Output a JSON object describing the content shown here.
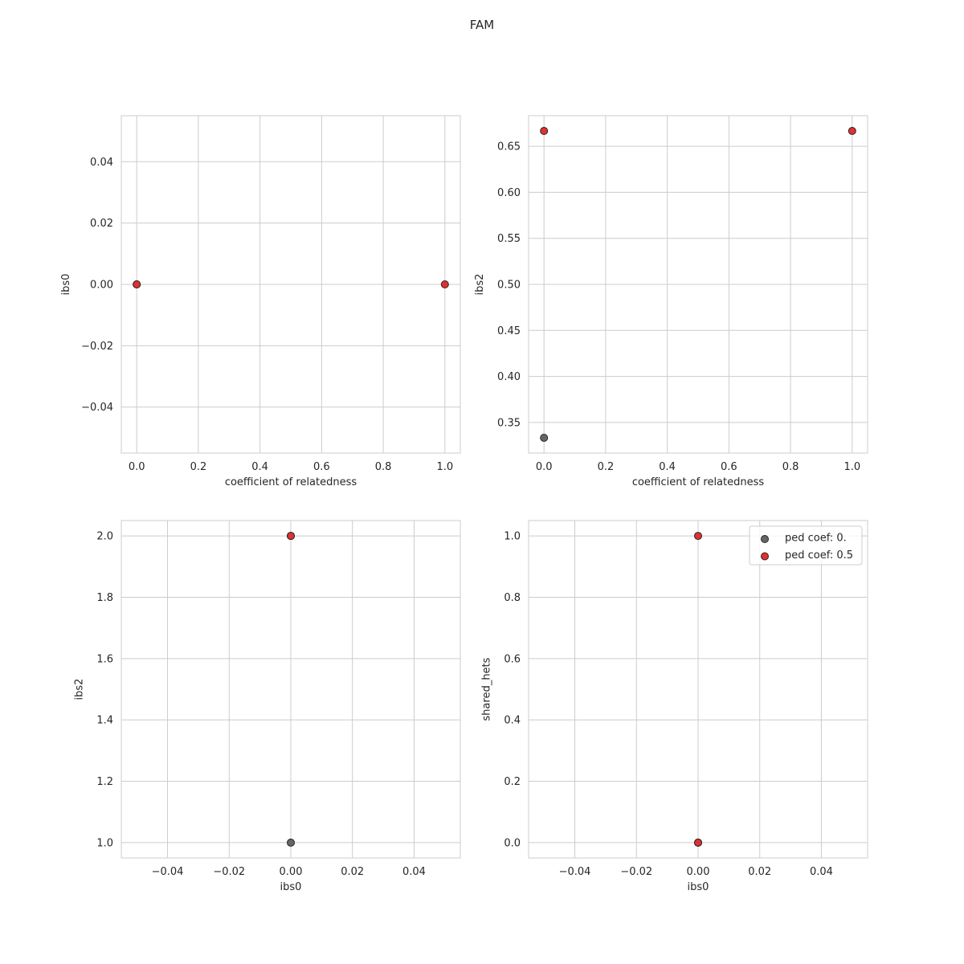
{
  "figure": {
    "suptitle": "FAM"
  },
  "colors": {
    "unrelated": "#666666",
    "related": "#e03030",
    "marker_edge": "#262626",
    "grid": "#cccccc",
    "frame": "#cccccc"
  },
  "legend": {
    "location": "top-right of bottom-right panel",
    "entries": [
      {
        "label": "ped coef: 0.",
        "color": "#666666"
      },
      {
        "label": "ped coef: 0.5",
        "color": "#e03030"
      }
    ]
  },
  "chart_data": [
    {
      "type": "scatter",
      "title": "",
      "xlabel": "coefficient of relatedness",
      "ylabel": "ibs0",
      "xlim": [
        -0.05,
        1.05
      ],
      "ylim": [
        -0.055,
        0.055
      ],
      "xticks": [
        0.0,
        0.2,
        0.4,
        0.6,
        0.8,
        1.0
      ],
      "xtick_labels": [
        "0.0",
        "0.2",
        "0.4",
        "0.6",
        "0.8",
        "1.0"
      ],
      "yticks": [
        -0.04,
        -0.02,
        0.0,
        0.02,
        0.04
      ],
      "ytick_labels": [
        "−0.04",
        "−0.02",
        "0.00",
        "0.02",
        "0.04"
      ],
      "grid": true,
      "series": [
        {
          "name": "ped coef: 0.",
          "color": "#666666",
          "points": [
            {
              "x": 0.0,
              "y": 0.0
            }
          ]
        },
        {
          "name": "ped coef: 0.5",
          "color": "#e03030",
          "points": [
            {
              "x": 0.0,
              "y": 0.0
            },
            {
              "x": 1.0,
              "y": 0.0
            }
          ]
        }
      ]
    },
    {
      "type": "scatter",
      "title": "",
      "xlabel": "coefficient of relatedness",
      "ylabel": "ibs2",
      "xlim": [
        -0.05,
        1.05
      ],
      "ylim": [
        0.3167,
        0.6833
      ],
      "xticks": [
        0.0,
        0.2,
        0.4,
        0.6,
        0.8,
        1.0
      ],
      "xtick_labels": [
        "0.0",
        "0.2",
        "0.4",
        "0.6",
        "0.8",
        "1.0"
      ],
      "yticks": [
        0.35,
        0.4,
        0.45,
        0.5,
        0.55,
        0.6,
        0.65
      ],
      "ytick_labels": [
        "0.35",
        "0.40",
        "0.45",
        "0.50",
        "0.55",
        "0.60",
        "0.65"
      ],
      "grid": true,
      "series": [
        {
          "name": "ped coef: 0.",
          "color": "#666666",
          "points": [
            {
              "x": 0.0,
              "y": 0.3333
            }
          ]
        },
        {
          "name": "ped coef: 0.5",
          "color": "#e03030",
          "points": [
            {
              "x": 0.0,
              "y": 0.6667
            },
            {
              "x": 1.0,
              "y": 0.6667
            }
          ]
        }
      ]
    },
    {
      "type": "scatter",
      "title": "",
      "xlabel": "ibs0",
      "ylabel": "ibs2",
      "xlim": [
        -0.055,
        0.055
      ],
      "ylim": [
        0.95,
        2.05
      ],
      "xticks": [
        -0.04,
        -0.02,
        0.0,
        0.02,
        0.04
      ],
      "xtick_labels": [
        "−0.04",
        "−0.02",
        "0.00",
        "0.02",
        "0.04"
      ],
      "yticks": [
        1.0,
        1.2,
        1.4,
        1.6,
        1.8,
        2.0
      ],
      "ytick_labels": [
        "1.0",
        "1.2",
        "1.4",
        "1.6",
        "1.8",
        "2.0"
      ],
      "grid": true,
      "series": [
        {
          "name": "ped coef: 0.",
          "color": "#666666",
          "points": [
            {
              "x": 0.0,
              "y": 1.0
            },
            {
              "x": 0.0,
              "y": 2.0
            }
          ]
        },
        {
          "name": "ped coef: 0.5",
          "color": "#e03030",
          "points": [
            {
              "x": 0.0,
              "y": 2.0
            }
          ]
        }
      ]
    },
    {
      "type": "scatter",
      "title": "",
      "xlabel": "ibs0",
      "ylabel": "shared_hets",
      "xlim": [
        -0.055,
        0.055
      ],
      "ylim": [
        -0.05,
        1.05
      ],
      "xticks": [
        -0.04,
        -0.02,
        0.0,
        0.02,
        0.04
      ],
      "xtick_labels": [
        "−0.04",
        "−0.02",
        "0.00",
        "0.02",
        "0.04"
      ],
      "yticks": [
        0.0,
        0.2,
        0.4,
        0.6,
        0.8,
        1.0
      ],
      "ytick_labels": [
        "0.0",
        "0.2",
        "0.4",
        "0.6",
        "0.8",
        "1.0"
      ],
      "grid": true,
      "series": [
        {
          "name": "ped coef: 0.",
          "color": "#666666",
          "points": [
            {
              "x": 0.0,
              "y": 0.0
            }
          ]
        },
        {
          "name": "ped coef: 0.5",
          "color": "#e03030",
          "points": [
            {
              "x": 0.0,
              "y": 0.0
            },
            {
              "x": 0.0,
              "y": 1.0
            }
          ]
        }
      ]
    }
  ]
}
